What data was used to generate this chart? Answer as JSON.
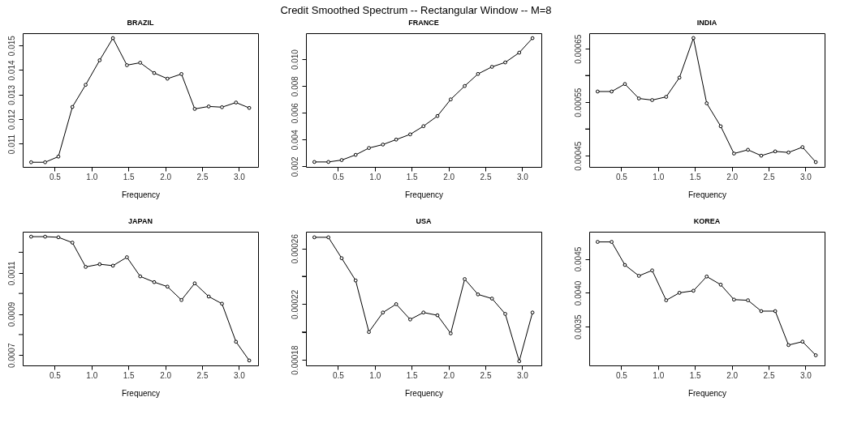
{
  "chart_data": [
    {
      "type": "line",
      "title": "BRAZIL",
      "xlabel": "Frequency",
      "annotations": [
        "Credit Smoothed Spectrum -- Rectangular Window -- M=8"
      ],
      "marker": "circle",
      "line_style": "solid",
      "x": [
        0.18,
        0.37,
        0.55,
        0.74,
        0.92,
        1.11,
        1.29,
        1.48,
        1.66,
        1.85,
        2.03,
        2.22,
        2.4,
        2.59,
        2.77,
        2.96,
        3.14
      ],
      "series": [
        {
          "color": "#000000",
          "values": [
            0.01025,
            0.01025,
            0.01048,
            0.0125,
            0.0134,
            0.0144,
            0.0153,
            0.0142,
            0.0143,
            0.01388,
            0.01365,
            0.01384,
            0.01242,
            0.01252,
            0.01249,
            0.01268,
            0.01246
          ]
        }
      ],
      "xlim": [
        0.066,
        3.26
      ],
      "xticks": [
        0.5,
        {
          "value": 1,
          "label": "1.0"
        },
        1.5,
        {
          "value": 2,
          "label": "2.0"
        },
        2.5,
        {
          "value": 3,
          "label": "3.0"
        }
      ],
      "ylim": [
        0.01006,
        0.0155
      ],
      "yticks": [
        0.011,
        0.012,
        0.013,
        0.014,
        0.015
      ]
    },
    {
      "type": "line",
      "title": "FRANCE",
      "xlabel": "Frequency",
      "marker": "circle",
      "line_style": "solid",
      "x": [
        0.18,
        0.37,
        0.55,
        0.74,
        0.92,
        1.11,
        1.29,
        1.48,
        1.66,
        1.85,
        2.03,
        2.22,
        2.4,
        2.59,
        2.77,
        2.96,
        3.14
      ],
      "series": [
        {
          "color": "#000000",
          "values": [
            0.00233,
            0.00233,
            0.00247,
            0.00286,
            0.00337,
            0.00363,
            0.004,
            0.00439,
            0.005,
            0.00576,
            0.007,
            0.008,
            0.0089,
            0.00943,
            0.00976,
            0.01049,
            0.01157
          ]
        }
      ],
      "xlim": [
        0.066,
        3.26
      ],
      "xticks": [
        0.5,
        {
          "value": 1,
          "label": "1.0"
        },
        1.5,
        {
          "value": 2,
          "label": "2.0"
        },
        2.5,
        {
          "value": 3,
          "label": "3.0"
        }
      ],
      "ylim": [
        0.00196,
        0.01194
      ],
      "yticks": [
        0.002,
        0.004,
        0.006,
        0.008,
        {
          "value": 0.01,
          "label": "0.010"
        }
      ]
    },
    {
      "type": "line",
      "title": "INDIA",
      "xlabel": "Frequency",
      "marker": "circle",
      "line_style": "solid",
      "x": [
        0.18,
        0.37,
        0.55,
        0.74,
        0.92,
        1.11,
        1.29,
        1.48,
        1.66,
        1.85,
        2.03,
        2.22,
        2.4,
        2.59,
        2.77,
        2.96,
        3.14
      ],
      "series": [
        {
          "color": "#000000",
          "values": [
            0.00057,
            0.00057,
            0.000584,
            0.000557,
            0.000554,
            0.00056,
            0.000596,
            0.00067,
            0.000548,
            0.000505,
            0.000454,
            0.000461,
            0.00045,
            0.000458,
            0.000456,
            0.000466,
            0.000438
          ]
        }
      ],
      "xlim": [
        0.066,
        3.26
      ],
      "xticks": [
        0.5,
        {
          "value": 1,
          "label": "1.0"
        },
        1.5,
        {
          "value": 2,
          "label": "2.0"
        },
        2.5,
        {
          "value": 3,
          "label": "3.0"
        }
      ],
      "ylim": [
        0.000429,
        0.000679
      ],
      "yticks": [
        0.00045,
        {
          "value": 0.0005,
          "label": null
        },
        0.00055,
        {
          "value": 0.0006,
          "label": null
        },
        0.00065
      ]
    },
    {
      "type": "line",
      "title": "JAPAN",
      "xlabel": "Frequency",
      "marker": "circle",
      "line_style": "solid",
      "x": [
        0.18,
        0.37,
        0.55,
        0.74,
        0.92,
        1.11,
        1.29,
        1.48,
        1.66,
        1.85,
        2.03,
        2.22,
        2.4,
        2.59,
        2.77,
        2.96,
        3.14
      ],
      "series": [
        {
          "color": "#000000",
          "values": [
            0.001276,
            0.001276,
            0.001273,
            0.001247,
            0.001129,
            0.001142,
            0.001135,
            0.001176,
            0.001083,
            0.001055,
            0.001033,
            0.000968,
            0.001049,
            0.000985,
            0.00095,
            0.000765,
            0.000674
          ]
        }
      ],
      "xlim": [
        0.066,
        3.26
      ],
      "xticks": [
        0.5,
        {
          "value": 1,
          "label": "1.0"
        },
        1.5,
        {
          "value": 2,
          "label": "2.0"
        },
        2.5,
        {
          "value": 3,
          "label": "3.0"
        }
      ],
      "ylim": [
        0.00065,
        0.0013
      ],
      "yticks": [
        0.0007,
        {
          "value": 0.0008,
          "label": null
        },
        0.0009,
        {
          "value": 0.001,
          "label": null
        },
        0.0011,
        {
          "value": 0.0012,
          "label": null
        }
      ]
    },
    {
      "type": "line",
      "title": "USA",
      "xlabel": "Frequency",
      "marker": "circle",
      "line_style": "solid",
      "x": [
        0.18,
        0.37,
        0.55,
        0.74,
        0.92,
        1.11,
        1.29,
        1.48,
        1.66,
        1.85,
        2.03,
        2.22,
        2.4,
        2.59,
        2.77,
        2.96,
        3.14
      ],
      "series": [
        {
          "color": "#000000",
          "values": [
            0.000268,
            0.000268,
            0.000253,
            0.000237,
            0.0002,
            0.000214,
            0.00022,
            0.000209,
            0.000214,
            0.000212,
            0.000199,
            0.000238,
            0.000227,
            0.000224,
            0.000213,
            0.000179,
            0.000214
          ]
        }
      ],
      "xlim": [
        0.066,
        3.26
      ],
      "xticks": [
        0.5,
        {
          "value": 1,
          "label": "1.0"
        },
        1.5,
        {
          "value": 2,
          "label": "2.0"
        },
        2.5,
        {
          "value": 3,
          "label": "3.0"
        }
      ],
      "ylim": [
        0.000176,
        0.000272
      ],
      "yticks": [
        0.00018,
        {
          "value": 0.0002,
          "label": null
        },
        0.00022,
        {
          "value": 0.00024,
          "label": null
        },
        0.00026
      ]
    },
    {
      "type": "line",
      "title": "KOREA",
      "xlabel": "Frequency",
      "marker": "circle",
      "line_style": "solid",
      "x": [
        0.18,
        0.37,
        0.55,
        0.74,
        0.92,
        1.11,
        1.29,
        1.48,
        1.66,
        1.85,
        2.03,
        2.22,
        2.4,
        2.59,
        2.77,
        2.96,
        3.14
      ],
      "series": [
        {
          "color": "#000000",
          "values": [
            0.00475,
            0.00475,
            0.00441,
            0.00425,
            0.00433,
            0.00389,
            0.004,
            0.00403,
            0.00424,
            0.00412,
            0.0039,
            0.00389,
            0.00373,
            0.00373,
            0.00323,
            0.00328,
            0.00308
          ]
        }
      ],
      "xlim": [
        0.066,
        3.26
      ],
      "xticks": [
        0.5,
        {
          "value": 1,
          "label": "1.0"
        },
        1.5,
        {
          "value": 2,
          "label": "2.0"
        },
        2.5,
        {
          "value": 3,
          "label": "3.0"
        }
      ],
      "ylim": [
        0.00293,
        0.0049
      ],
      "yticks": [
        0.0035,
        {
          "value": 0.004,
          "label": "0.0040"
        },
        0.0045
      ]
    }
  ]
}
